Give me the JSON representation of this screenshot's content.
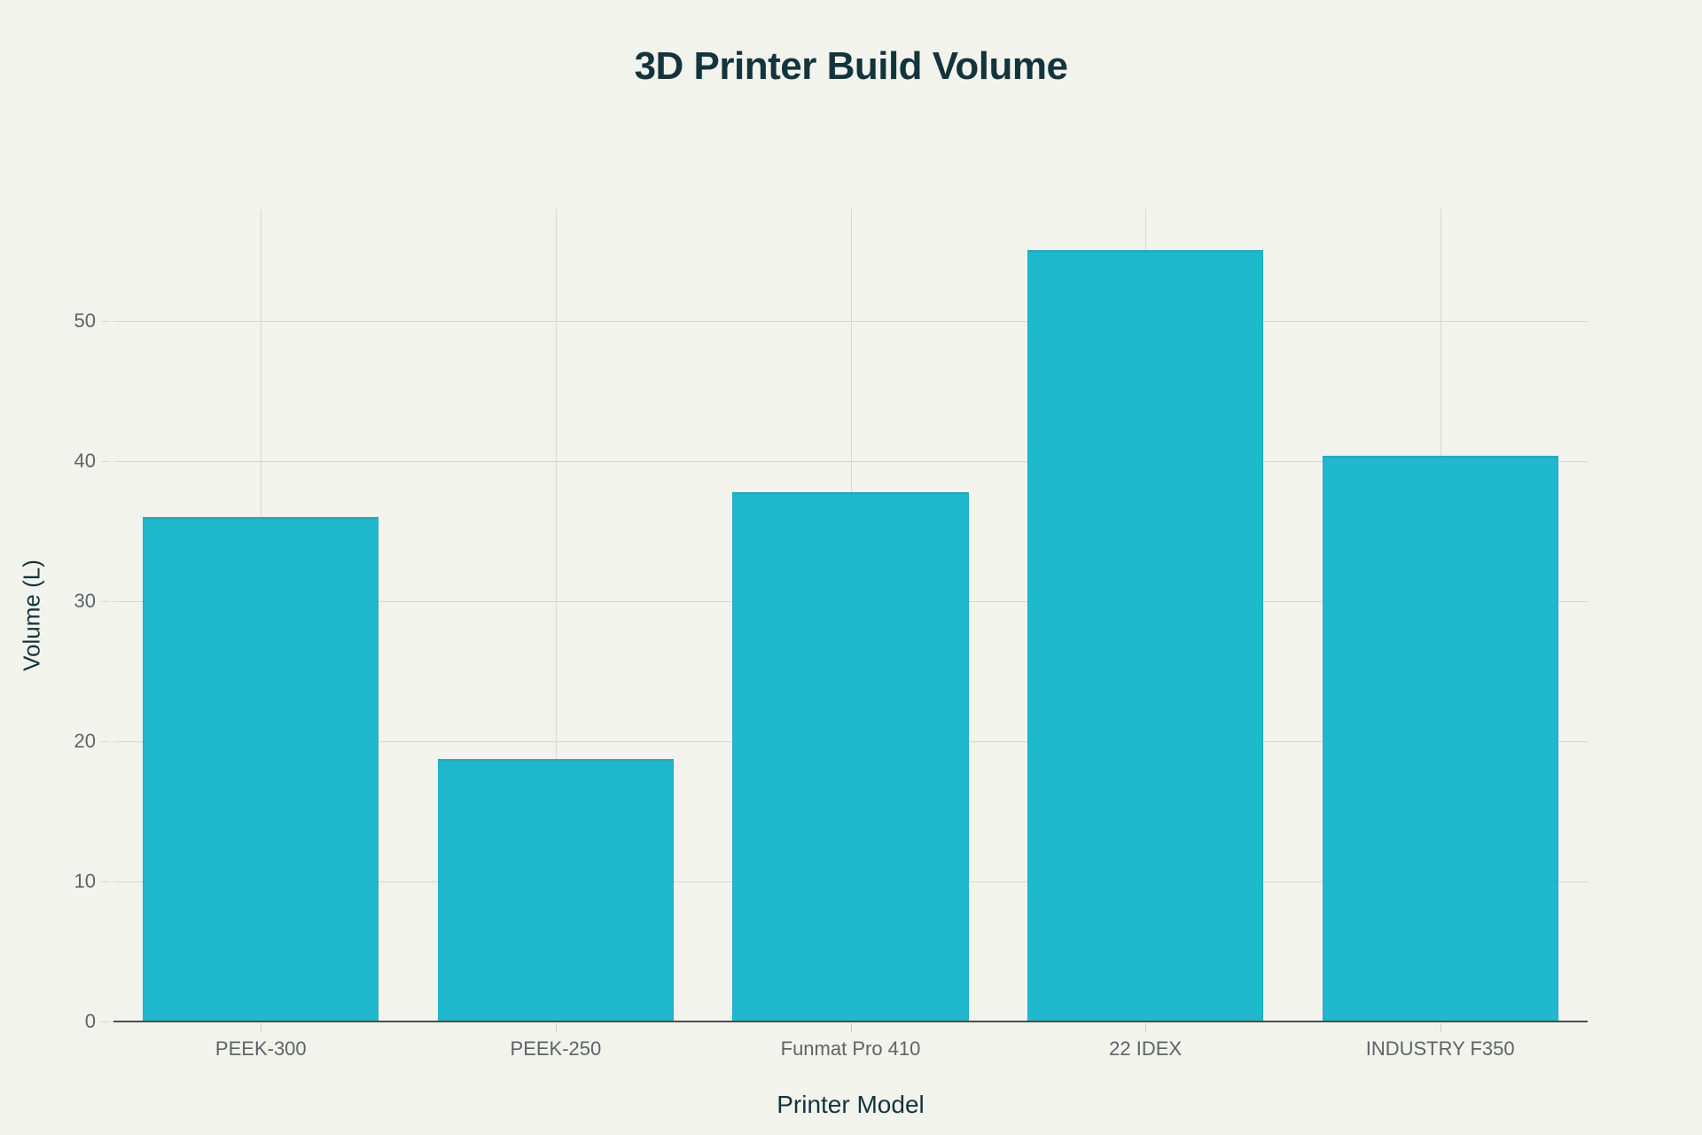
{
  "chart_data": {
    "type": "bar",
    "title": "3D Printer Build Volume",
    "xlabel": "Printer Model",
    "ylabel": "Volume (L)",
    "categories": [
      "PEEK-300",
      "PEEK-250",
      "Funmat Pro 410",
      "22 IDEX",
      "INDUSTRY F350"
    ],
    "values": [
      36.0,
      18.75,
      37.8,
      55.1,
      40.4
    ],
    "ylim": [
      0,
      58
    ],
    "yticks": [
      0,
      10,
      20,
      30,
      40,
      50
    ],
    "grid": true,
    "legend": "none",
    "bar_color": "#1FB8CD"
  },
  "colors": {
    "background": "#F3F3EE",
    "bar": "#1FB8CD",
    "title": "#13343B",
    "tick_label": "#5F6368",
    "grid": "#D6D6D2"
  }
}
